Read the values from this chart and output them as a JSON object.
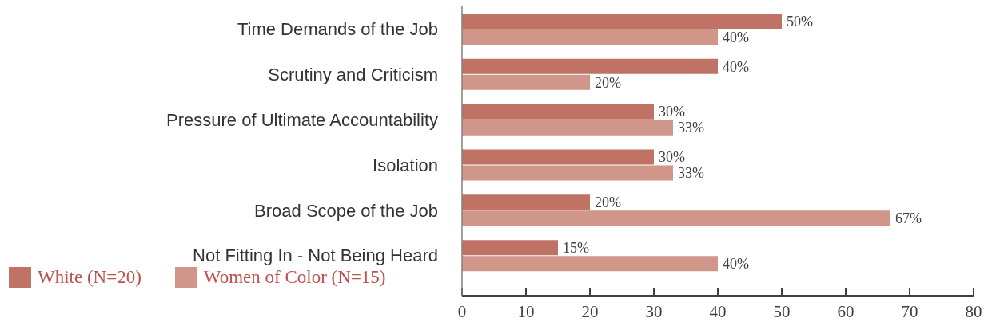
{
  "chart_data": {
    "type": "bar",
    "orientation": "horizontal",
    "categories": [
      "Time Demands of the Job",
      "Scrutiny and Criticism",
      "Pressure of Ultimate Accountability",
      "Isolation",
      "Broad Scope of the Job",
      "Not Fitting In - Not Being Heard"
    ],
    "series": [
      {
        "name": "White (N=20)",
        "color": "#c07264",
        "values": [
          50,
          40,
          30,
          30,
          20,
          15
        ],
        "value_labels": [
          "50%",
          "40%",
          "30%",
          "30%",
          "20%",
          "15%"
        ]
      },
      {
        "name": "Women of Color (N=15)",
        "color": "#d0968a",
        "values": [
          40,
          20,
          33,
          33,
          67,
          40
        ],
        "value_labels": [
          "40%",
          "20%",
          "33%",
          "33%",
          "67%",
          "40%"
        ]
      }
    ],
    "xlim": [
      0,
      80
    ],
    "xticks": [
      0,
      10,
      20,
      30,
      40,
      50,
      60,
      70,
      80
    ],
    "legend": "bottom left"
  }
}
